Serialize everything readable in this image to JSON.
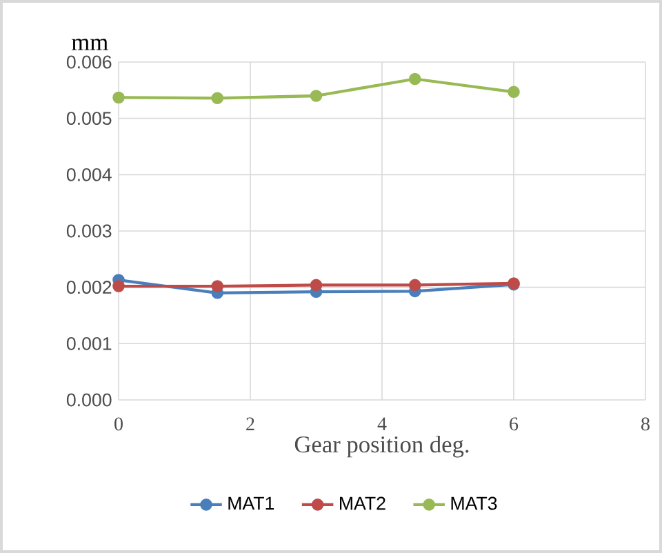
{
  "chart_data": {
    "type": "line",
    "xlabel": "Gear position deg.",
    "ylabel": "mm",
    "xlim": [
      0,
      8
    ],
    "xticks": [
      0,
      2,
      4,
      6,
      8
    ],
    "ylim": [
      0,
      0.006
    ],
    "yticks": [
      {
        "value": 0,
        "label": "0.000"
      },
      {
        "value": 0.001,
        "label": "0.001"
      },
      {
        "value": 0.002,
        "label": "0.002"
      },
      {
        "value": 0.003,
        "label": "0.003"
      },
      {
        "value": 0.004,
        "label": "0.004"
      },
      {
        "value": 0.005,
        "label": "0.005"
      },
      {
        "value": 0.006,
        "label": "0.006"
      }
    ],
    "x": [
      0,
      1.5,
      3,
      4.5,
      6
    ],
    "series": [
      {
        "name": "MAT1",
        "color": "#4a7ebb",
        "values": [
          0.00213,
          0.0019,
          0.00192,
          0.00193,
          0.00205
        ]
      },
      {
        "name": "MAT2",
        "color": "#be4b48",
        "values": [
          0.00202,
          0.00202,
          0.00204,
          0.00204,
          0.00207
        ]
      },
      {
        "name": "MAT3",
        "color": "#98b954",
        "values": [
          0.00537,
          0.00536,
          0.0054,
          0.0057,
          0.00547
        ]
      }
    ],
    "grid": true,
    "legend": "bottom",
    "marker": "circle",
    "line_style": "solid"
  }
}
